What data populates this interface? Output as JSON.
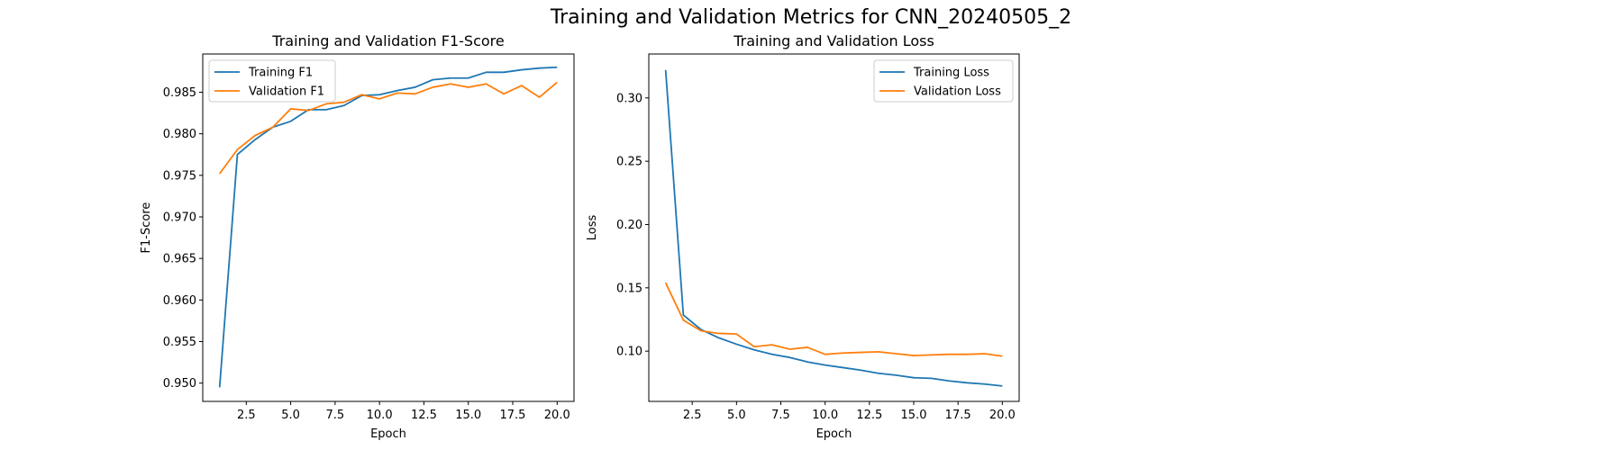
{
  "figure": {
    "suptitle": "Training and Validation Metrics for CNN_20240505_2"
  },
  "chart_data": [
    {
      "type": "line",
      "title": "Training and Validation F1-Score",
      "xlabel": "Epoch",
      "ylabel": "F1-Score",
      "x": [
        1,
        2,
        3,
        4,
        5,
        6,
        7,
        8,
        9,
        10,
        11,
        12,
        13,
        14,
        15,
        16,
        17,
        18,
        19,
        20
      ],
      "xlim": [
        0.05,
        20.95
      ],
      "ylim": [
        0.9478,
        0.9896
      ],
      "xticks": [
        2.5,
        5.0,
        7.5,
        10.0,
        12.5,
        15.0,
        17.5,
        20.0
      ],
      "xtick_labels": [
        "2.5",
        "5.0",
        "7.5",
        "10.0",
        "12.5",
        "15.0",
        "17.5",
        "20.0"
      ],
      "yticks": [
        0.95,
        0.955,
        0.96,
        0.965,
        0.97,
        0.975,
        0.98,
        0.985
      ],
      "ytick_labels": [
        "0.950",
        "0.955",
        "0.960",
        "0.965",
        "0.970",
        "0.975",
        "0.980",
        "0.985"
      ],
      "grid": false,
      "legend": "top-left",
      "series": [
        {
          "name": "Training F1",
          "color": "#1f77b4",
          "values": [
            0.9495,
            0.9775,
            0.9793,
            0.9808,
            0.9815,
            0.9829,
            0.9829,
            0.9834,
            0.9846,
            0.9847,
            0.9852,
            0.9856,
            0.9865,
            0.9867,
            0.9867,
            0.9874,
            0.9874,
            0.9877,
            0.9879,
            0.988
          ]
        },
        {
          "name": "Validation F1",
          "color": "#ff7f0e",
          "values": [
            0.9752,
            0.9781,
            0.9798,
            0.9808,
            0.983,
            0.9828,
            0.9836,
            0.9838,
            0.9847,
            0.9842,
            0.9849,
            0.9848,
            0.9856,
            0.986,
            0.9856,
            0.986,
            0.9848,
            0.9858,
            0.9844,
            0.9862
          ]
        }
      ]
    },
    {
      "type": "line",
      "title": "Training and Validation Loss",
      "xlabel": "Epoch",
      "ylabel": "Loss",
      "x": [
        1,
        2,
        3,
        4,
        5,
        6,
        7,
        8,
        9,
        10,
        11,
        12,
        13,
        14,
        15,
        16,
        17,
        18,
        19,
        20
      ],
      "xlim": [
        0.05,
        20.95
      ],
      "ylim": [
        0.0603,
        0.3347
      ],
      "xticks": [
        2.5,
        5.0,
        7.5,
        10.0,
        12.5,
        15.0,
        17.5,
        20.0
      ],
      "xtick_labels": [
        "2.5",
        "5.0",
        "7.5",
        "10.0",
        "12.5",
        "15.0",
        "17.5",
        "20.0"
      ],
      "yticks": [
        0.1,
        0.15,
        0.2,
        0.25,
        0.3
      ],
      "ytick_labels": [
        "0.10",
        "0.15",
        "0.20",
        "0.25",
        "0.30"
      ],
      "grid": false,
      "legend": "top-right",
      "series": [
        {
          "name": "Training Loss",
          "color": "#1f77b4",
          "values": [
            0.322,
            0.1285,
            0.117,
            0.1105,
            0.1055,
            0.101,
            0.0975,
            0.095,
            0.0915,
            0.089,
            0.087,
            0.085,
            0.0825,
            0.081,
            0.079,
            0.0785,
            0.0765,
            0.075,
            0.074,
            0.0725
          ]
        },
        {
          "name": "Validation Loss",
          "color": "#ff7f0e",
          "values": [
            0.154,
            0.1245,
            0.116,
            0.114,
            0.1135,
            0.1035,
            0.105,
            0.1015,
            0.103,
            0.0975,
            0.0985,
            0.099,
            0.0995,
            0.098,
            0.0965,
            0.097,
            0.0975,
            0.0975,
            0.098,
            0.096
          ]
        }
      ]
    }
  ]
}
